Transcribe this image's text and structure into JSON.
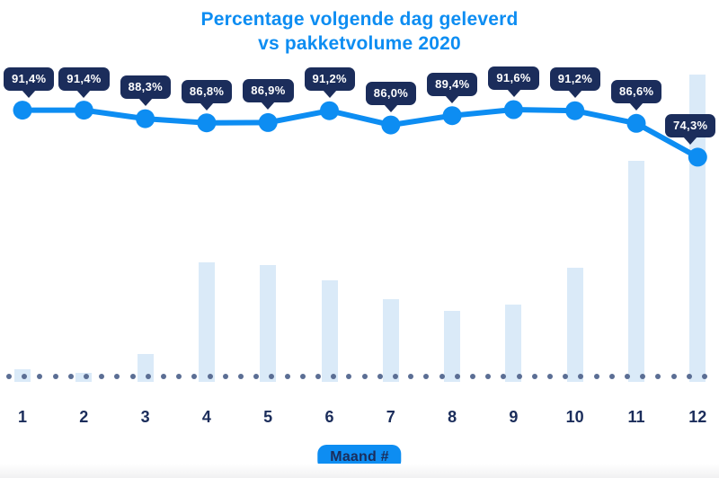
{
  "title": {
    "line1": "Percentage volgende dag geleverd",
    "line2": "vs pakketvolume 2020"
  },
  "x_axis": {
    "label": "Maand #",
    "ticks": [
      "1",
      "2",
      "3",
      "4",
      "5",
      "6",
      "7",
      "8",
      "9",
      "10",
      "11",
      "12"
    ]
  },
  "chart_data": {
    "type": "combo",
    "title": "Percentage volgende dag geleverd vs pakketvolume 2020",
    "xlabel": "Maand #",
    "categories": [
      1,
      2,
      3,
      4,
      5,
      6,
      7,
      8,
      9,
      10,
      11,
      12
    ],
    "series": [
      {
        "name": "Percentage volgende dag geleverd",
        "type": "line",
        "unit": "%",
        "values": [
          91.4,
          91.4,
          88.3,
          86.8,
          86.9,
          91.2,
          86.0,
          89.4,
          91.6,
          91.2,
          86.6,
          74.3
        ],
        "labels": [
          "91,4%",
          "91,4%",
          "88,3%",
          "86,8%",
          "86,9%",
          "91,2%",
          "86,0%",
          "89,4%",
          "91,6%",
          "91,2%",
          "86,6%",
          "74,3%"
        ]
      },
      {
        "name": "Pakketvolume 2020",
        "type": "bar",
        "unit": "relative volume index (estimated from bar heights, max month = 100)",
        "values": [
          4,
          3,
          9,
          39,
          38,
          33,
          27,
          23,
          25,
          37,
          72,
          100
        ]
      }
    ],
    "legend": "none",
    "grid": "dotted baseline only",
    "baseline_style": "row of slate dots along x-axis"
  },
  "colors": {
    "accent_blue": "#0d8df2",
    "navy": "#1b2d5b",
    "bar_fill": "#daeaf8",
    "baseline_dot": "#5b6e94",
    "badge_text": "#ffffff",
    "background": "#ffffff"
  }
}
